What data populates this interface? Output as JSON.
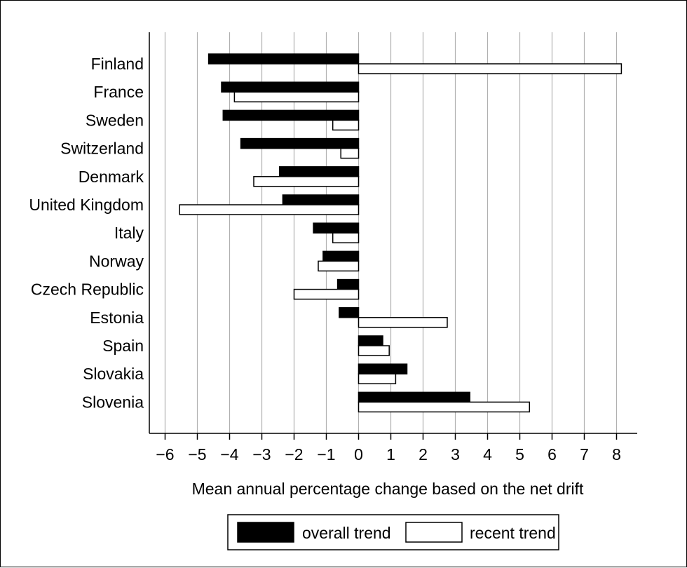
{
  "chart_data": {
    "type": "bar",
    "orientation": "horizontal",
    "categories": [
      "Finland",
      "France",
      "Sweden",
      "Switzerland",
      "Denmark",
      "United Kingdom",
      "Italy",
      "Norway",
      "Czech Republic",
      "Estonia",
      "Spain",
      "Slovakia",
      "Slovenia"
    ],
    "series": [
      {
        "name": "overall trend",
        "color": "#000000",
        "values": [
          -4.65,
          -4.25,
          -4.2,
          -3.65,
          -2.45,
          -2.35,
          -1.4,
          -1.1,
          -0.65,
          -0.6,
          0.75,
          1.5,
          3.45
        ]
      },
      {
        "name": "recent trend",
        "color": "#ffffff",
        "values": [
          8.15,
          -3.85,
          -0.8,
          -0.55,
          -3.25,
          -5.55,
          -0.8,
          -1.25,
          -2.0,
          2.75,
          0.95,
          1.15,
          5.3
        ]
      }
    ],
    "xlabel": "Mean annual percentage change based on the net drift",
    "xlim": [
      -6.5,
      8.6
    ],
    "xticks": [
      -6,
      -5,
      -4,
      -3,
      -2,
      -1,
      0,
      1,
      2,
      3,
      4,
      5,
      6,
      7,
      8
    ],
    "xtick_labels": [
      "−6",
      "−5",
      "−4",
      "−3",
      "−2",
      "−1",
      "0",
      "1",
      "2",
      "3",
      "4",
      "5",
      "6",
      "7",
      "8"
    ],
    "grid": "vertical",
    "legend": "bottom-right"
  }
}
